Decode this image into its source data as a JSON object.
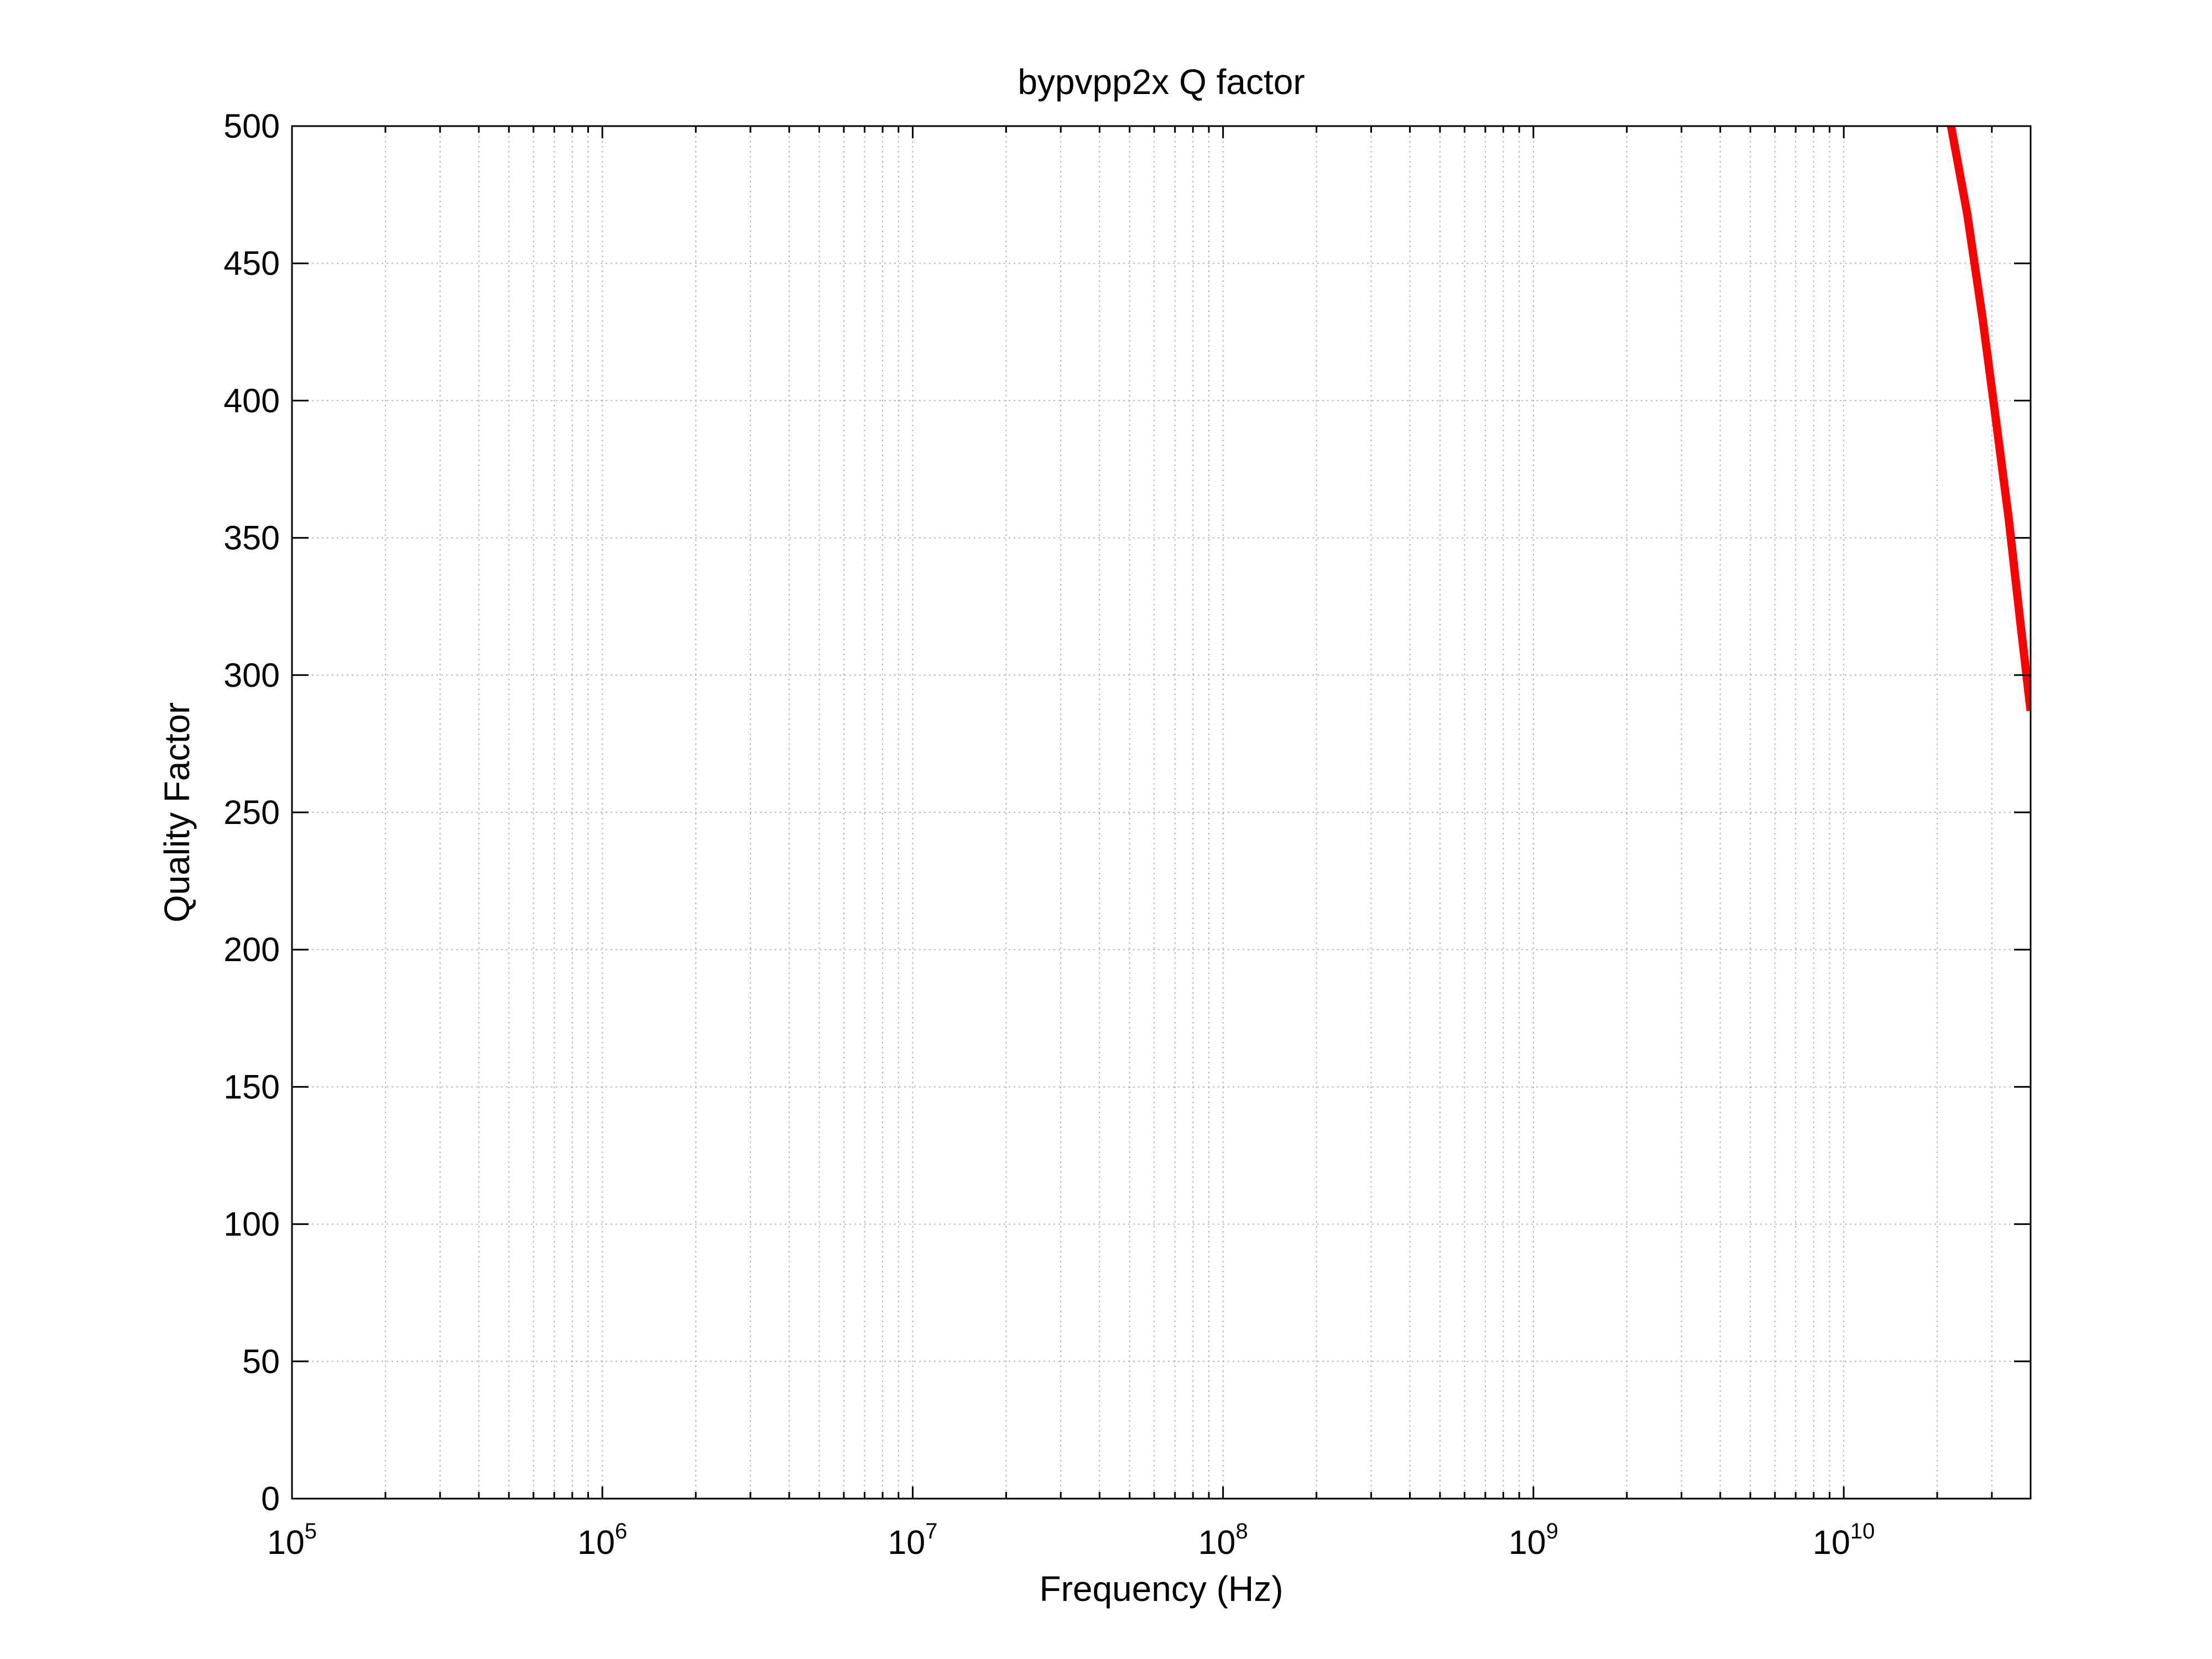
{
  "chart_data": {
    "type": "line",
    "title": "bypvpp2x Q factor",
    "xlabel": "Frequency (Hz)",
    "ylabel": "Quality Factor",
    "xscale": "log",
    "xlim": [
      100000,
      40000000000
    ],
    "ylim": [
      0,
      500
    ],
    "grid": true,
    "x_ticks": [
      {
        "value": 100000,
        "base": "10",
        "exp": "5"
      },
      {
        "value": 1000000,
        "base": "10",
        "exp": "6"
      },
      {
        "value": 10000000,
        "base": "10",
        "exp": "7"
      },
      {
        "value": 100000000,
        "base": "10",
        "exp": "8"
      },
      {
        "value": 1000000000,
        "base": "10",
        "exp": "9"
      },
      {
        "value": 10000000000,
        "base": "10",
        "exp": "10"
      }
    ],
    "y_ticks": [
      0,
      50,
      100,
      150,
      200,
      250,
      300,
      350,
      400,
      450,
      500
    ],
    "series": [
      {
        "color": "#ff0000",
        "x": [
          22000000000,
          25000000000,
          28000000000,
          31000000000,
          34000000000,
          37000000000,
          40000000000
        ],
        "y": [
          502,
          468,
          430,
          392,
          357,
          320,
          287
        ]
      }
    ]
  }
}
